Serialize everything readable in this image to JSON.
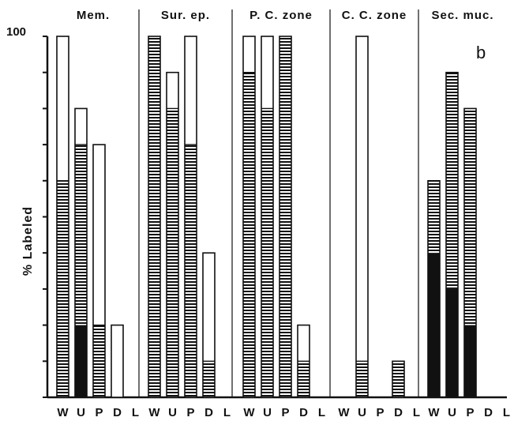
{
  "chart_data": {
    "type": "bar",
    "panel_label": "b",
    "ylabel": "% Labeled",
    "ylim": [
      0,
      100
    ],
    "y_tick_label": "100",
    "categories": [
      "W",
      "U",
      "P",
      "D",
      "L"
    ],
    "legend": null,
    "fill_levels": [
      "white",
      "horizontal-stripes",
      "black"
    ],
    "panels": [
      {
        "title": "Mem.",
        "bars": [
          {
            "category": "W",
            "total": 100,
            "striped": 60,
            "black": 0
          },
          {
            "category": "U",
            "total": 80,
            "striped": 70,
            "black": 20
          },
          {
            "category": "P",
            "total": 70,
            "striped": 20,
            "black": 0
          },
          {
            "category": "D",
            "total": 20,
            "striped": 0,
            "black": 0
          },
          {
            "category": "L",
            "total": null,
            "striped": null,
            "black": null
          }
        ]
      },
      {
        "title": "Sur. ep.",
        "bars": [
          {
            "category": "W",
            "total": 100,
            "striped": 100,
            "black": 0
          },
          {
            "category": "U",
            "total": 90,
            "striped": 80,
            "black": 0
          },
          {
            "category": "P",
            "total": 100,
            "striped": 70,
            "black": 0
          },
          {
            "category": "D",
            "total": 40,
            "striped": 10,
            "black": 0
          },
          {
            "category": "L",
            "total": null,
            "striped": null,
            "black": null
          }
        ]
      },
      {
        "title": "P. C. zone",
        "bars": [
          {
            "category": "W",
            "total": 100,
            "striped": 90,
            "black": 0
          },
          {
            "category": "U",
            "total": 100,
            "striped": 80,
            "black": 0
          },
          {
            "category": "P",
            "total": 100,
            "striped": 100,
            "black": 0
          },
          {
            "category": "D",
            "total": 20,
            "striped": 10,
            "black": 0
          },
          {
            "category": "L",
            "total": null,
            "striped": null,
            "black": null
          }
        ]
      },
      {
        "title": "C. C. zone",
        "bars": [
          {
            "category": "W",
            "total": null,
            "striped": null,
            "black": null
          },
          {
            "category": "U",
            "total": 100,
            "striped": 10,
            "black": 0
          },
          {
            "category": "P",
            "total": null,
            "striped": null,
            "black": null
          },
          {
            "category": "D",
            "total": 10,
            "striped": 10,
            "black": 0
          },
          {
            "category": "L",
            "total": null,
            "striped": null,
            "black": null
          }
        ]
      },
      {
        "title": "Sec. muc.",
        "bars": [
          {
            "category": "W",
            "total": 60,
            "striped": 60,
            "black": 40
          },
          {
            "category": "U",
            "total": 90,
            "striped": 90,
            "black": 30
          },
          {
            "category": "P",
            "total": 80,
            "striped": 80,
            "black": 20
          },
          {
            "category": "D",
            "total": null,
            "striped": null,
            "black": null
          },
          {
            "category": "L",
            "total": null,
            "striped": null,
            "black": null
          }
        ]
      }
    ]
  }
}
